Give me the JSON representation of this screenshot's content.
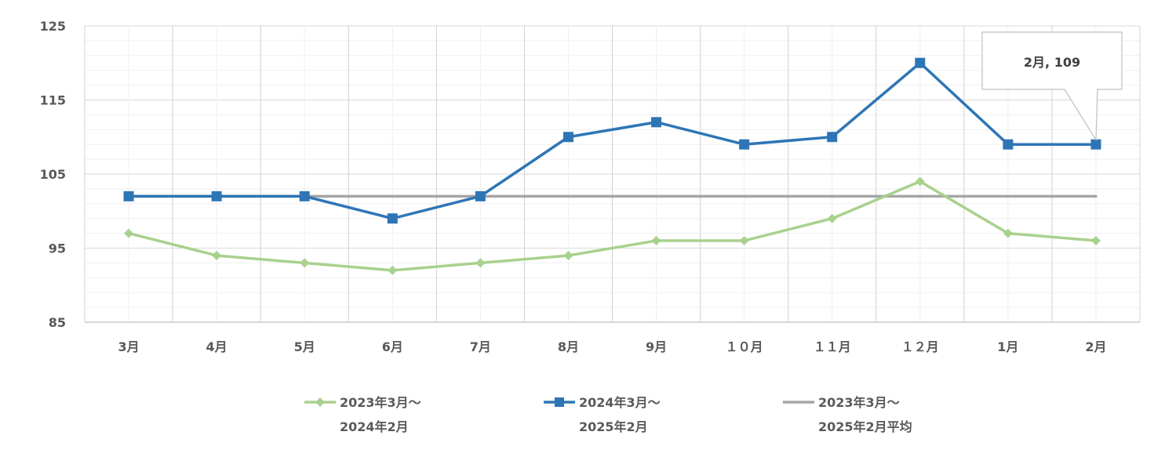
{
  "chart_data": {
    "type": "line",
    "title": "",
    "xlabel": "",
    "ylabel": "",
    "categories": [
      "3月",
      "4月",
      "5月",
      "6月",
      "7月",
      "8月",
      "9月",
      "10月",
      "11月",
      "12月",
      "1月",
      "2月"
    ],
    "category_labels": [
      "3月",
      "4月",
      "5月",
      "6月",
      "7月",
      "8月",
      "9月",
      "１０月",
      "１１月",
      "１２月",
      "1月",
      "2月"
    ],
    "ylim": [
      85,
      125
    ],
    "yticks": [
      "125",
      "115",
      "105",
      "95",
      "85"
    ],
    "grid": true,
    "legend_position": "bottom",
    "series": [
      {
        "name": "2023年3月～2024年2月",
        "legend_lines": [
          "2023年3月～",
          "2024年2月"
        ],
        "color": "#a9d18e",
        "marker": "diamond",
        "values": [
          97,
          94,
          93,
          92,
          93,
          94,
          96,
          96,
          99,
          104,
          97,
          96
        ]
      },
      {
        "name": "2024年3月～2025年2月",
        "legend_lines": [
          "2024年3月～",
          "2025年2月"
        ],
        "color": "#2e75b6",
        "marker": "square",
        "values": [
          102,
          102,
          102,
          99,
          102,
          110,
          112,
          109,
          110,
          120,
          109,
          109
        ]
      },
      {
        "name": "2023年3月～2025年2月平均",
        "legend_lines": [
          "2023年3月～",
          "2025年2月平均"
        ],
        "color": "#a5a5a5",
        "marker": "none",
        "values": [
          102,
          102,
          102,
          102,
          102,
          102,
          102,
          102,
          102,
          102,
          102,
          102
        ]
      }
    ],
    "annotations": [
      {
        "series_index": 1,
        "category_index": 11,
        "text": "2月, 109"
      }
    ]
  }
}
